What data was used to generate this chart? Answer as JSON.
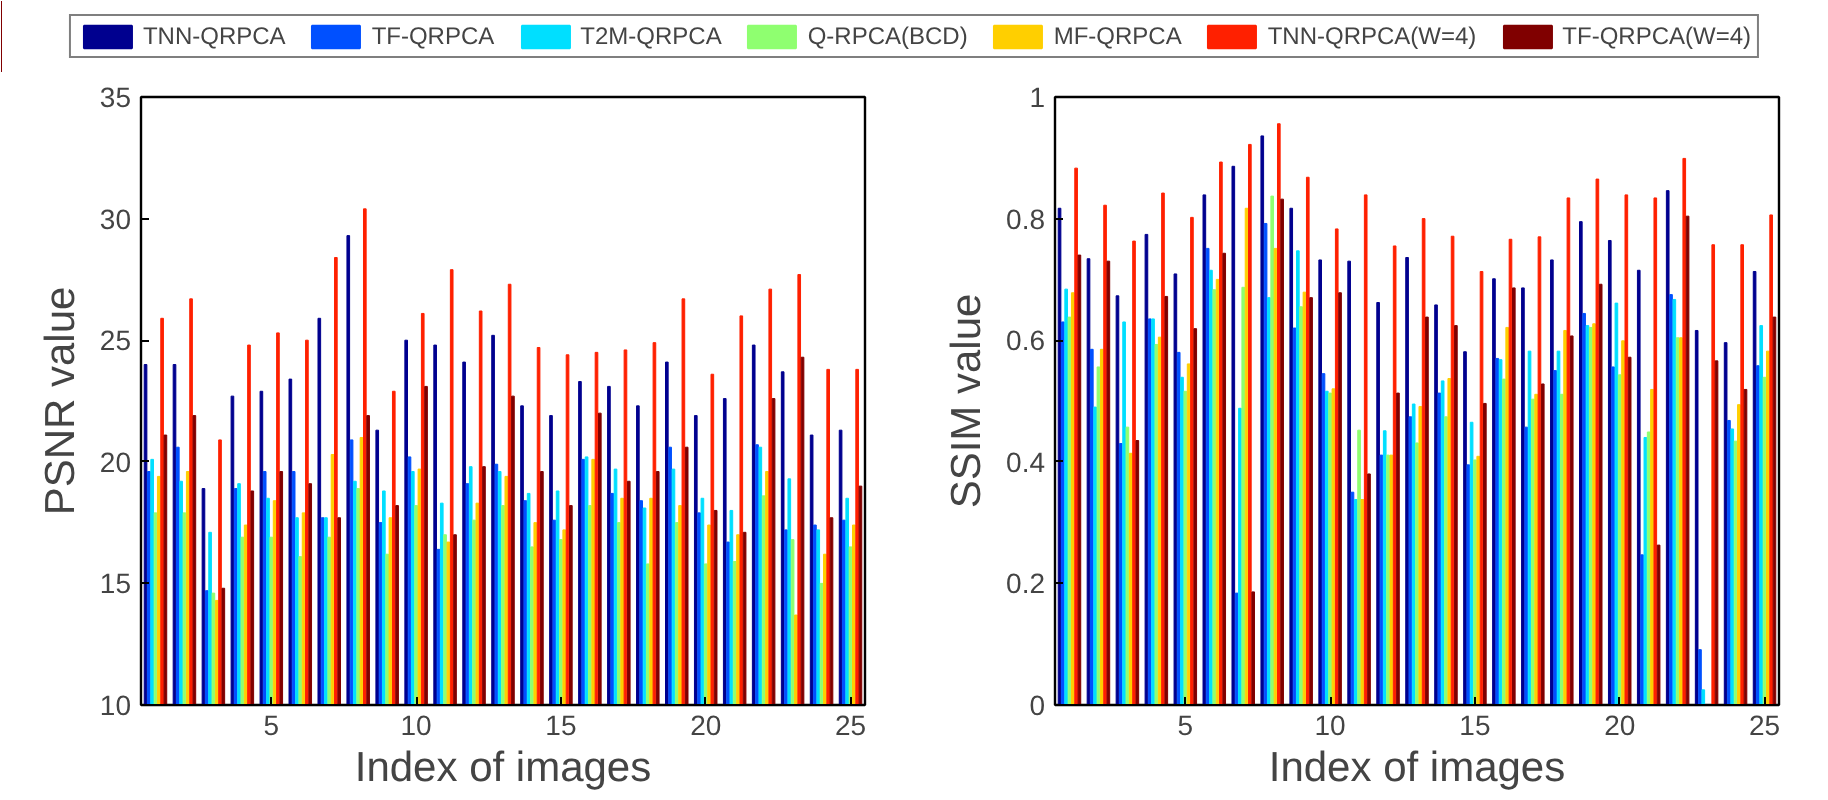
{
  "chart_data": [
    {
      "type": "bar",
      "xlabel": "Index of images",
      "ylabel": "PSNR value",
      "x": [
        1,
        2,
        3,
        4,
        5,
        6,
        7,
        8,
        9,
        10,
        11,
        12,
        13,
        14,
        15,
        16,
        17,
        18,
        19,
        20,
        21,
        22,
        23,
        24,
        25
      ],
      "xlim": [
        0.5,
        25.5
      ],
      "xticks": [
        5,
        10,
        15,
        20,
        25
      ],
      "ylim": [
        10,
        35
      ],
      "yticks": [
        10,
        15,
        20,
        25,
        30,
        35
      ],
      "legend": "top",
      "grid": false,
      "series": [
        {
          "name": "TNN-QRPCA",
          "color": "#00008f",
          "values": [
            24.0,
            24.0,
            18.9,
            22.7,
            22.9,
            23.4,
            25.9,
            29.3,
            21.3,
            25.0,
            24.8,
            24.1,
            25.2,
            22.3,
            21.9,
            23.3,
            23.1,
            22.3,
            24.1,
            21.9,
            22.6,
            24.8,
            23.7,
            21.1,
            21.3
          ]
        },
        {
          "name": "TF-QRPCA",
          "color": "#0050ff",
          "values": [
            19.6,
            20.6,
            14.7,
            18.9,
            19.6,
            19.6,
            17.7,
            20.9,
            17.5,
            20.2,
            16.4,
            19.1,
            19.9,
            18.4,
            17.6,
            20.1,
            18.7,
            18.4,
            20.6,
            17.9,
            16.7,
            20.7,
            17.2,
            17.4,
            17.6
          ]
        },
        {
          "name": "T2M-QRPCA",
          "color": "#00dfff",
          "values": [
            20.1,
            19.2,
            17.1,
            19.1,
            18.5,
            17.7,
            17.7,
            19.2,
            18.8,
            19.6,
            18.3,
            19.8,
            19.6,
            18.7,
            18.8,
            20.2,
            19.7,
            18.1,
            19.7,
            18.5,
            18.0,
            20.6,
            19.3,
            17.2,
            18.5
          ]
        },
        {
          "name": "Q-RPCA(BCD)",
          "color": "#8fff70",
          "values": [
            17.9,
            17.9,
            14.6,
            16.9,
            16.9,
            16.1,
            16.9,
            18.9,
            16.2,
            18.2,
            17.0,
            17.6,
            18.2,
            16.5,
            16.8,
            18.2,
            17.5,
            15.8,
            17.5,
            15.8,
            15.9,
            18.6,
            16.8,
            15.0,
            16.5
          ]
        },
        {
          "name": "MF-QRPCA",
          "color": "#ffcf00",
          "values": [
            19.4,
            19.6,
            14.3,
            17.4,
            18.4,
            17.9,
            20.3,
            21.0,
            17.7,
            19.7,
            16.7,
            18.3,
            19.4,
            17.5,
            17.2,
            20.1,
            18.5,
            18.5,
            18.2,
            17.4,
            17.0,
            19.6,
            13.7,
            16.2,
            17.4
          ]
        },
        {
          "name": "TNN-QRPCA(W=4)",
          "color": "#ff2000",
          "values": [
            25.9,
            26.7,
            20.9,
            24.8,
            25.3,
            25.0,
            28.4,
            30.4,
            22.9,
            26.1,
            27.9,
            26.2,
            27.3,
            24.7,
            24.4,
            24.5,
            24.6,
            24.9,
            26.7,
            23.6,
            26.0,
            27.1,
            27.7,
            23.8,
            23.8
          ]
        },
        {
          "name": "TF-QRPCA(W=4)",
          "color": "#800000",
          "values": [
            21.1,
            21.9,
            14.8,
            18.8,
            19.6,
            19.1,
            17.7,
            21.9,
            18.2,
            23.1,
            17.0,
            19.8,
            22.7,
            19.6,
            18.2,
            22.0,
            19.2,
            19.6,
            20.6,
            18.0,
            17.1,
            22.6,
            24.3,
            17.7,
            19.0
          ]
        }
      ]
    },
    {
      "type": "bar",
      "xlabel": "Index of images",
      "ylabel": "SSIM value",
      "x": [
        1,
        2,
        3,
        4,
        5,
        6,
        7,
        8,
        9,
        10,
        11,
        12,
        13,
        14,
        15,
        16,
        17,
        18,
        19,
        20,
        21,
        22,
        23,
        24,
        25
      ],
      "xlim": [
        0.5,
        25.5
      ],
      "xticks": [
        5,
        10,
        15,
        20,
        25
      ],
      "ylim": [
        0,
        1
      ],
      "yticks": [
        0,
        {
          "value": 0.2,
          "label": "0.2"
        },
        {
          "value": 0.4,
          "label": "0.4"
        },
        {
          "value": 0.6,
          "label": "0.6"
        },
        {
          "value": 0.8,
          "label": "0.8"
        },
        1
      ],
      "grid": false,
      "series": [
        {
          "color": "#00008f",
          "values": [
            0.817,
            0.734,
            0.673,
            0.774,
            0.709,
            0.839,
            0.886,
            0.936,
            0.817,
            0.732,
            0.73,
            0.662,
            0.736,
            0.658,
            0.581,
            0.701,
            0.686,
            0.732,
            0.795,
            0.764,
            0.715,
            0.846,
            0.616,
            0.596,
            0.713
          ]
        },
        {
          "color": "#0050ff",
          "values": [
            0.63,
            0.585,
            0.43,
            0.635,
            0.58,
            0.751,
            0.184,
            0.792,
            0.62,
            0.545,
            0.35,
            0.411,
            0.474,
            0.513,
            0.395,
            0.57,
            0.457,
            0.55,
            0.644,
            0.556,
            0.247,
            0.675,
            0.091,
            0.468,
            0.558
          ]
        },
        {
          "color": "#00dfff",
          "values": [
            0.684,
            0.49,
            0.63,
            0.635,
            0.539,
            0.715,
            0.488,
            0.67,
            0.747,
            0.516,
            0.338,
            0.451,
            0.495,
            0.533,
            0.465,
            0.568,
            0.582,
            0.582,
            0.624,
            0.661,
            0.44,
            0.667,
            0.025,
            0.454,
            0.624
          ]
        },
        {
          "color": "#8fff70",
          "values": [
            0.638,
            0.556,
            0.457,
            0.593,
            0.516,
            0.683,
            0.687,
            0.837,
            0.655,
            0.513,
            0.452,
            0.411,
            0.431,
            0.474,
            0.403,
            0.536,
            0.503,
            0.511,
            0.621,
            0.543,
            0.449,
            0.604,
            0.0,
            0.434,
            0.539
          ]
        },
        {
          "color": "#ffcf00",
          "values": [
            0.678,
            0.585,
            0.414,
            0.605,
            0.561,
            0.7,
            0.817,
            0.751,
            0.679,
            0.52,
            0.338,
            0.411,
            0.491,
            0.537,
            0.409,
            0.621,
            0.511,
            0.616,
            0.627,
            0.599,
            0.519,
            0.604,
            0.0,
            0.494,
            0.582
          ]
        },
        {
          "color": "#ff2000",
          "values": [
            0.883,
            0.822,
            0.763,
            0.842,
            0.802,
            0.893,
            0.922,
            0.956,
            0.868,
            0.783,
            0.839,
            0.755,
            0.8,
            0.771,
            0.713,
            0.766,
            0.77,
            0.834,
            0.865,
            0.839,
            0.834,
            0.899,
            0.757,
            0.757,
            0.806
          ]
        },
        {
          "color": "#800000",
          "values": [
            0.74,
            0.73,
            0.435,
            0.672,
            0.619,
            0.743,
            0.186,
            0.832,
            0.67,
            0.678,
            0.38,
            0.513,
            0.638,
            0.624,
            0.496,
            0.686,
            0.528,
            0.607,
            0.692,
            0.572,
            0.263,
            0.804,
            0.566,
            0.519,
            0.638
          ]
        }
      ]
    }
  ]
}
